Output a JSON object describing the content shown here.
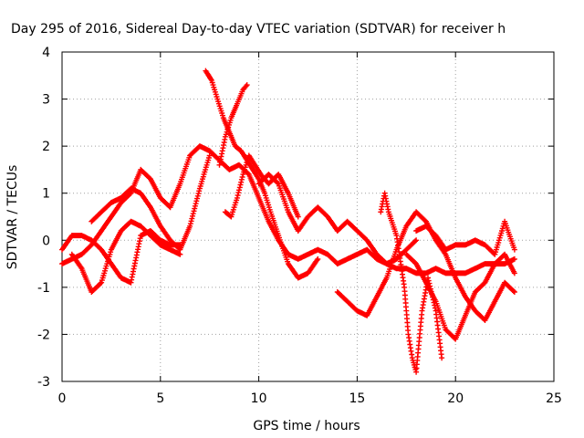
{
  "chart_data": {
    "type": "scatter",
    "title": "Day 295 of 2016, Sidereal Day-to-day VTEC variation (SDTVAR) for receiver h",
    "xlabel": "GPS time / hours",
    "ylabel": "SDTVAR / TECUs",
    "xlim": [
      0,
      25
    ],
    "ylim": [
      -3,
      4
    ],
    "xticks": [
      0,
      5,
      10,
      15,
      20,
      25
    ],
    "yticks": [
      -3,
      -2,
      -1,
      0,
      1,
      2,
      3,
      4
    ],
    "grid": true,
    "marker": "+",
    "series_color": "#ff0000",
    "series": [
      {
        "x": [
          0.0,
          0.5,
          1.0,
          1.5,
          2.0,
          2.5,
          3.0,
          3.5,
          4.0,
          4.5,
          5.0,
          5.5,
          6.0,
          6.5,
          7.0,
          7.5,
          8.0,
          8.5,
          9.0,
          9.5,
          10.0,
          10.5,
          11.0,
          11.5,
          12.0,
          12.5,
          13.0,
          13.5,
          14.0,
          14.5,
          15.0,
          15.5,
          16.0,
          16.5,
          17.0,
          17.5,
          18.0,
          18.5,
          19.0,
          19.5,
          20.0,
          20.5,
          21.0,
          21.5,
          22.0,
          22.5,
          23.0
        ],
        "y": [
          -0.5,
          -0.4,
          -0.3,
          -0.1,
          0.2,
          0.5,
          0.8,
          1.0,
          1.5,
          1.3,
          0.9,
          0.7,
          1.2,
          1.8,
          2.0,
          1.9,
          1.7,
          1.5,
          1.6,
          1.4,
          0.9,
          0.4,
          0.0,
          -0.3,
          -0.4,
          -0.3,
          -0.2,
          -0.3,
          -0.5,
          -0.4,
          -0.3,
          -0.2,
          -0.4,
          -0.5,
          -0.6,
          -0.6,
          -0.7,
          -0.7,
          -0.6,
          -0.7,
          -0.7,
          -0.7,
          -0.6,
          -0.5,
          -0.5,
          -0.5,
          -0.4
        ]
      },
      {
        "x": [
          0.0,
          0.5,
          1.0,
          1.5,
          2.0,
          2.5,
          3.0,
          3.5,
          4.0,
          4.5,
          5.0,
          5.5,
          6.0
        ],
        "y": [
          -0.2,
          0.1,
          0.1,
          0.0,
          -0.2,
          -0.5,
          -0.8,
          -0.9,
          0.1,
          0.2,
          0.0,
          -0.1,
          -0.1
        ]
      },
      {
        "x": [
          0.5,
          1.0,
          1.5,
          2.0,
          2.5,
          3.0,
          3.5,
          4.0,
          4.5,
          5.0,
          5.5,
          6.0
        ],
        "y": [
          -0.3,
          -0.6,
          -1.1,
          -0.9,
          -0.2,
          0.2,
          0.4,
          0.3,
          0.1,
          -0.1,
          -0.2,
          -0.3
        ]
      },
      {
        "x": [
          1.5,
          2.0,
          2.5,
          3.0,
          3.5,
          4.0,
          4.5,
          5.0,
          5.5,
          6.0,
          6.5,
          7.0,
          7.5
        ],
        "y": [
          0.4,
          0.6,
          0.8,
          0.9,
          1.1,
          1.0,
          0.7,
          0.3,
          0.0,
          -0.2,
          0.3,
          1.1,
          1.8
        ]
      },
      {
        "x": [
          7.3,
          7.6,
          7.9,
          8.2,
          8.5,
          8.8,
          9.1,
          9.4,
          9.7,
          10.0,
          10.3,
          10.6,
          11.0,
          11.5,
          12.0,
          12.5,
          13.0
        ],
        "y": [
          3.6,
          3.4,
          3.0,
          2.6,
          2.3,
          2.0,
          1.9,
          1.7,
          1.5,
          1.3,
          1.0,
          0.6,
          0.1,
          -0.5,
          -0.8,
          -0.7,
          -0.4
        ]
      },
      {
        "x": [
          8.3,
          8.6,
          8.9,
          9.2,
          9.5,
          9.8,
          10.1,
          10.5,
          11.0,
          11.5,
          12.0
        ],
        "y": [
          0.6,
          0.5,
          0.9,
          1.4,
          1.8,
          1.6,
          1.4,
          1.2,
          1.4,
          1.0,
          0.5
        ]
      },
      {
        "x": [
          8.0,
          8.3,
          8.6,
          8.9,
          9.2,
          9.4
        ],
        "y": [
          1.6,
          2.2,
          2.6,
          2.9,
          3.2,
          3.3
        ]
      },
      {
        "x": [
          10.0,
          10.5,
          11.0,
          11.5,
          12.0,
          12.5,
          13.0,
          13.5,
          14.0,
          14.5,
          15.0,
          15.5,
          16.0,
          16.5,
          17.0,
          17.5,
          18.0
        ],
        "y": [
          1.2,
          1.4,
          1.2,
          0.6,
          0.2,
          0.5,
          0.7,
          0.5,
          0.2,
          0.4,
          0.2,
          0.0,
          -0.3,
          -0.5,
          -0.4,
          -0.2,
          0.0
        ]
      },
      {
        "x": [
          14.0,
          14.5,
          15.0,
          15.5,
          16.0,
          16.5,
          17.0,
          17.5,
          18.0,
          18.5,
          19.0,
          19.5,
          20.0,
          20.5,
          21.0,
          21.5,
          22.0,
          22.5,
          23.0
        ],
        "y": [
          -1.1,
          -1.3,
          -1.5,
          -1.6,
          -1.2,
          -0.8,
          -0.2,
          0.3,
          0.6,
          0.4,
          0.0,
          -0.3,
          -0.8,
          -1.2,
          -1.5,
          -1.7,
          -1.3,
          -0.9,
          -1.1
        ]
      },
      {
        "x": [
          16.2,
          16.4,
          16.6,
          17.0,
          17.4,
          17.6,
          17.8,
          18.0,
          18.3,
          18.6,
          19.0,
          19.3
        ],
        "y": [
          0.6,
          1.0,
          0.6,
          0.1,
          -1.0,
          -2.0,
          -2.5,
          -2.8,
          -1.5,
          -0.8,
          -1.5,
          -2.5
        ]
      },
      {
        "x": [
          17.5,
          18.0,
          18.5,
          19.0,
          19.5,
          20.0,
          20.5,
          21.0,
          21.5,
          22.0,
          22.5,
          23.0
        ],
        "y": [
          -0.3,
          -0.5,
          -0.9,
          -1.3,
          -1.9,
          -2.1,
          -1.6,
          -1.1,
          -0.9,
          -0.5,
          -0.3,
          -0.7
        ]
      },
      {
        "x": [
          18.0,
          18.5,
          19.0,
          19.5,
          20.0,
          20.5,
          21.0,
          21.5,
          22.0,
          22.5,
          23.0
        ],
        "y": [
          0.2,
          0.3,
          0.1,
          -0.2,
          -0.1,
          -0.1,
          0.0,
          -0.1,
          -0.3,
          0.4,
          -0.2
        ]
      }
    ]
  }
}
